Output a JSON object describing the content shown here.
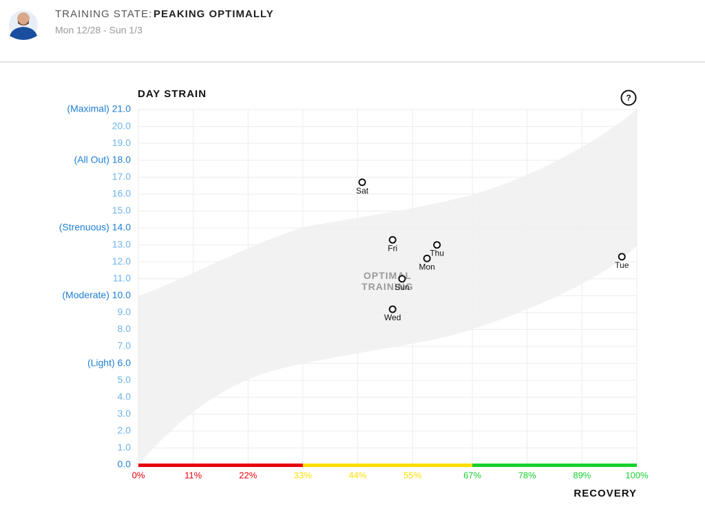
{
  "header": {
    "state_label": "TRAINING STATE:",
    "state": "PEAKING OPTIMALLY",
    "dates": "Mon 12/28 - Sun 1/3"
  },
  "chart_data": {
    "type": "scatter",
    "ylabel": "DAY STRAIN",
    "xlabel": "RECOVERY",
    "help": "?",
    "annotation": "OPTIMAL TRAINING",
    "labels": [
      "Sat",
      "Fri",
      "Thu",
      "Mon",
      "Tue",
      "Sun",
      "Wed"
    ],
    "x": [
      44.9,
      51.0,
      59.9,
      57.9,
      97.0,
      52.9,
      51.0
    ],
    "values": [
      16.7,
      13.3,
      13.0,
      12.2,
      12.3,
      11.0,
      9.2
    ],
    "xlim": [
      0,
      100
    ],
    "ylim": [
      0,
      21
    ],
    "xticks": [
      {
        "value": 0,
        "label": "0%"
      },
      {
        "value": 11,
        "label": "11%"
      },
      {
        "value": 22,
        "label": "22%"
      },
      {
        "value": 33,
        "label": "33%"
      },
      {
        "value": 44,
        "label": "44%"
      },
      {
        "value": 55,
        "label": "55%"
      },
      {
        "value": 67,
        "label": "67%"
      },
      {
        "value": 78,
        "label": "78%"
      },
      {
        "value": 89,
        "label": "89%"
      },
      {
        "value": 100,
        "label": "100%"
      }
    ],
    "yticks": [
      {
        "value": 0,
        "label": "0.0",
        "color": "#1e7fd2"
      },
      {
        "value": 1,
        "label": "1.0"
      },
      {
        "value": 2,
        "label": "2.0"
      },
      {
        "value": 3,
        "label": "3.0"
      },
      {
        "value": 4,
        "label": "4.0"
      },
      {
        "value": 5,
        "label": "5.0"
      },
      {
        "value": 6,
        "label": "(Light) 6.0",
        "color": "#1e7fd2"
      },
      {
        "value": 7,
        "label": "7.0"
      },
      {
        "value": 8,
        "label": "8.0"
      },
      {
        "value": 9,
        "label": "9.0"
      },
      {
        "value": 10,
        "label": "(Moderate) 10.0",
        "color": "#1e7fd2"
      },
      {
        "value": 11,
        "label": "11.0"
      },
      {
        "value": 12,
        "label": "12.0"
      },
      {
        "value": 13,
        "label": "13.0"
      },
      {
        "value": 14,
        "label": "(Strenuous) 14.0",
        "color": "#1e7fd2"
      },
      {
        "value": 15,
        "label": "15.0"
      },
      {
        "value": 16,
        "label": "16.0"
      },
      {
        "value": 17,
        "label": "17.0"
      },
      {
        "value": 18,
        "label": "(All Out) 18.0",
        "color": "#1e7fd2"
      },
      {
        "value": 19,
        "label": "19.0"
      },
      {
        "value": 20,
        "label": "20.0"
      },
      {
        "value": 21,
        "label": "(Maximal) 21.0",
        "color": "#1e7fd2"
      }
    ],
    "ytick_color": "#6cb4ea",
    "zones": [
      {
        "from": 0,
        "to": 33,
        "color": "#e8000b"
      },
      {
        "from": 33,
        "to": 67,
        "color": "#ffde00"
      },
      {
        "from": 67,
        "to": 100,
        "color": "#16d12e"
      }
    ],
    "grid": true
  }
}
